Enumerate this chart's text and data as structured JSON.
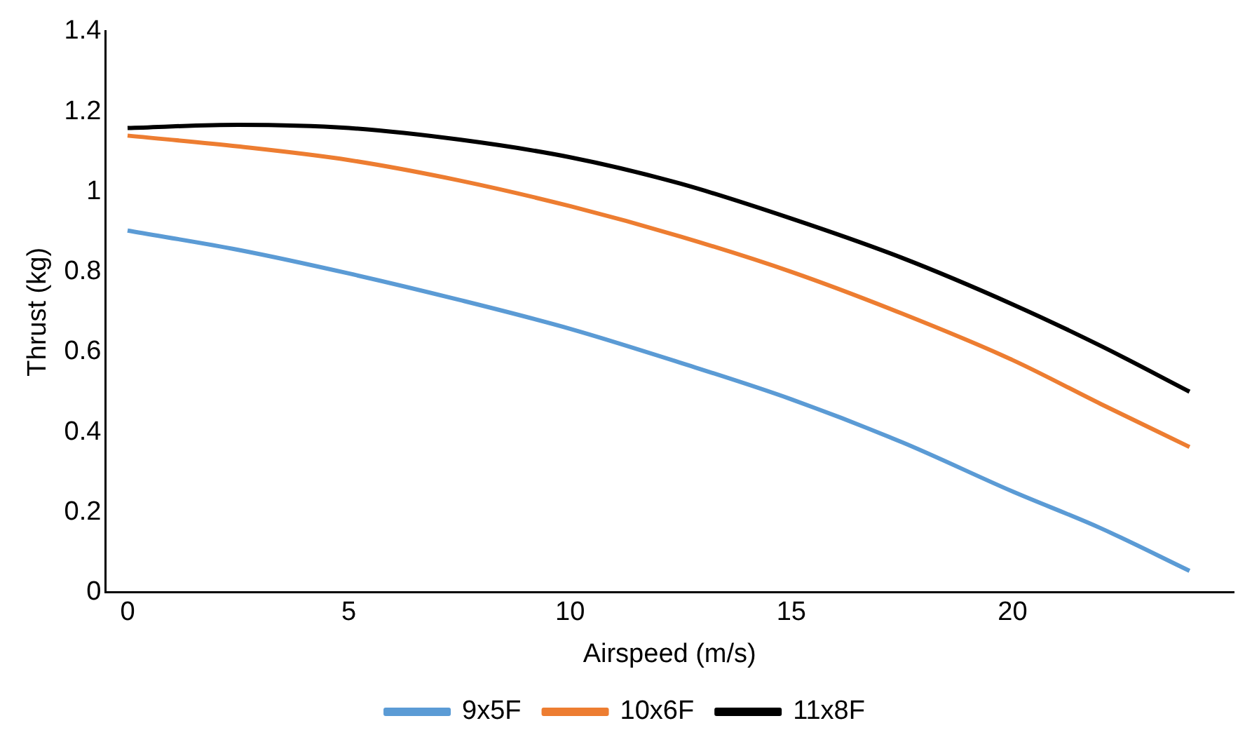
{
  "chart_data": {
    "type": "line",
    "xlabel": "Airspeed (m/s)",
    "ylabel": "Thrust (kg)",
    "xlim": [
      -0.5,
      25
    ],
    "xticks": [
      0,
      5,
      10,
      15,
      20
    ],
    "ylim": [
      0,
      1.4
    ],
    "yticks": [
      0,
      0.2,
      0.4,
      0.6,
      0.8,
      1,
      1.2,
      1.4
    ],
    "grid": false,
    "legend": "bottom",
    "marker": "none",
    "series": [
      {
        "name": "9x5F",
        "color": "#5b9bd5",
        "x": [
          0,
          2.5,
          5,
          7.5,
          10,
          12.5,
          15,
          17.5,
          20,
          22,
          24
        ],
        "values": [
          0.903,
          0.855,
          0.796,
          0.73,
          0.658,
          0.573,
          0.482,
          0.375,
          0.252,
          0.16,
          0.054
        ]
      },
      {
        "name": "10x6F",
        "color": "#ed7d31",
        "x": [
          0,
          2.5,
          5,
          7.5,
          10,
          12.5,
          15,
          17.5,
          20,
          22,
          24
        ],
        "values": [
          1.14,
          1.113,
          1.079,
          1.028,
          0.964,
          0.888,
          0.8,
          0.696,
          0.58,
          0.47,
          0.363
        ]
      },
      {
        "name": "11x8F",
        "color": "#000000",
        "x": [
          0,
          2.5,
          5,
          7.5,
          10,
          12.5,
          15,
          17.5,
          20,
          22,
          24
        ],
        "values": [
          1.159,
          1.167,
          1.159,
          1.13,
          1.086,
          1.02,
          0.933,
          0.835,
          0.719,
          0.615,
          0.501
        ]
      }
    ]
  }
}
